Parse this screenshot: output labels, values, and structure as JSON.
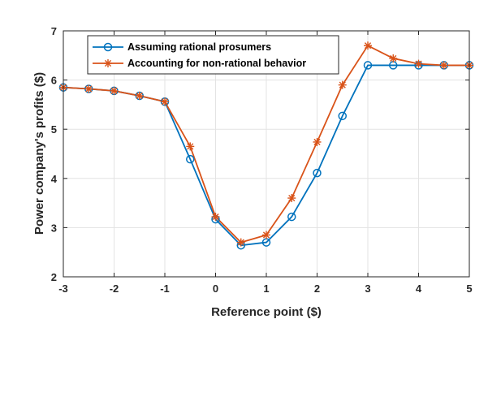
{
  "chart_data": {
    "type": "line",
    "xlabel": "Reference point ($)",
    "ylabel": "Power company's profits ($)",
    "xlim": [
      -3,
      5
    ],
    "ylim": [
      2,
      7
    ],
    "xticks": [
      "-3",
      "-2",
      "-1",
      "0",
      "1",
      "2",
      "3",
      "4",
      "5"
    ],
    "yticks": [
      "2",
      "3",
      "4",
      "5",
      "6",
      "7"
    ],
    "grid": true,
    "legend_position": "top-left",
    "x": [
      -3,
      -2.5,
      -2,
      -1.5,
      -1,
      -0.5,
      0,
      0.5,
      1,
      1.5,
      2,
      2.5,
      3,
      3.5,
      4,
      4.5,
      5
    ],
    "series": [
      {
        "name": "Assuming rational prosumers",
        "color": "#0072BD",
        "marker": "circle",
        "values": [
          5.85,
          5.82,
          5.78,
          5.68,
          5.56,
          4.39,
          3.17,
          2.64,
          2.7,
          3.22,
          4.11,
          5.27,
          6.3,
          6.3,
          6.3,
          6.3,
          6.3
        ]
      },
      {
        "name": "Accounting for non-rational behavior",
        "color": "#D95319",
        "marker": "asterisk",
        "values": [
          5.85,
          5.82,
          5.78,
          5.68,
          5.56,
          4.65,
          3.22,
          2.7,
          2.85,
          3.6,
          4.74,
          5.9,
          6.7,
          6.44,
          6.33,
          6.3,
          6.3
        ]
      }
    ]
  }
}
